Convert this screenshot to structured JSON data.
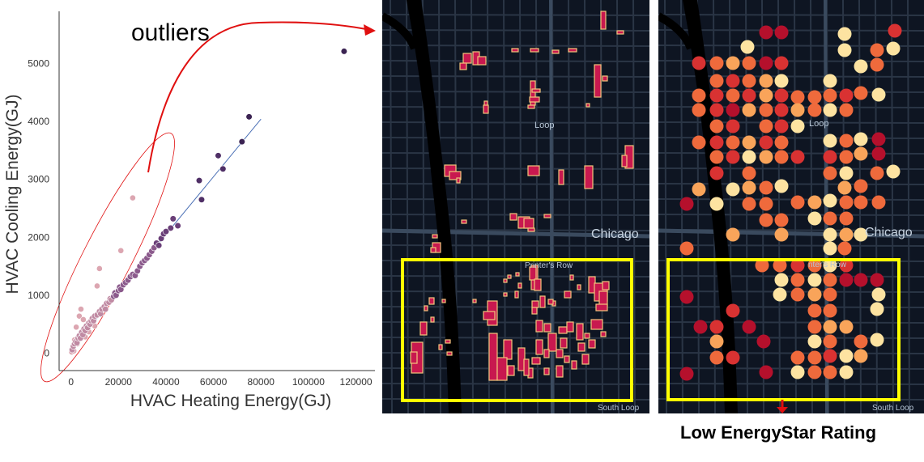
{
  "scatter": {
    "xlabel": "HVAC Heating Energy(GJ)",
    "ylabel": "HVAC Cooling Energy(GJ)",
    "annotation": "outliers"
  },
  "chart_data": {
    "type": "scatter",
    "xlabel": "HVAC Heating Energy(GJ)",
    "ylabel": "HVAC Cooling Energy(GJ)",
    "x_ticks": [
      0,
      20000,
      40000,
      60000,
      80000,
      100000,
      120000
    ],
    "y_ticks": [
      0,
      1000,
      2000,
      3000,
      4000,
      5000
    ],
    "xlim": [
      -5000,
      128000
    ],
    "ylim": [
      -300,
      5900
    ],
    "grid": false,
    "trend_line": {
      "x": [
        0,
        80000
      ],
      "y": [
        60,
        4040
      ]
    },
    "outlier_points": [
      {
        "x": 300,
        "y": 20
      },
      {
        "x": 800,
        "y": 90
      },
      {
        "x": 1200,
        "y": 40
      },
      {
        "x": 1500,
        "y": 230
      },
      {
        "x": 2200,
        "y": 450
      },
      {
        "x": 2600,
        "y": 160
      },
      {
        "x": 3500,
        "y": 640
      },
      {
        "x": 4200,
        "y": 760
      },
      {
        "x": 5200,
        "y": 580
      },
      {
        "x": 6000,
        "y": 280
      },
      {
        "x": 7500,
        "y": 370
      },
      {
        "x": 10000,
        "y": 470
      },
      {
        "x": 12000,
        "y": 1460
      },
      {
        "x": 11000,
        "y": 1160
      },
      {
        "x": 21000,
        "y": 1770
      },
      {
        "x": 26000,
        "y": 2680
      }
    ],
    "main_points": [
      {
        "x": 500,
        "y": 60
      },
      {
        "x": 1000,
        "y": 120
      },
      {
        "x": 1500,
        "y": 160
      },
      {
        "x": 2000,
        "y": 200
      },
      {
        "x": 2500,
        "y": 180
      },
      {
        "x": 3000,
        "y": 260
      },
      {
        "x": 3500,
        "y": 300
      },
      {
        "x": 4000,
        "y": 260
      },
      {
        "x": 4500,
        "y": 360
      },
      {
        "x": 5000,
        "y": 320
      },
      {
        "x": 5500,
        "y": 420
      },
      {
        "x": 6000,
        "y": 390
      },
      {
        "x": 6500,
        "y": 470
      },
      {
        "x": 7000,
        "y": 440
      },
      {
        "x": 7500,
        "y": 520
      },
      {
        "x": 8000,
        "y": 500
      },
      {
        "x": 8500,
        "y": 560
      },
      {
        "x": 9000,
        "y": 600
      },
      {
        "x": 9500,
        "y": 560
      },
      {
        "x": 10000,
        "y": 640
      },
      {
        "x": 11000,
        "y": 660
      },
      {
        "x": 12000,
        "y": 720
      },
      {
        "x": 12500,
        "y": 680
      },
      {
        "x": 13000,
        "y": 760
      },
      {
        "x": 14000,
        "y": 800
      },
      {
        "x": 14500,
        "y": 760
      },
      {
        "x": 15000,
        "y": 860
      },
      {
        "x": 16000,
        "y": 880
      },
      {
        "x": 16500,
        "y": 940
      },
      {
        "x": 17000,
        "y": 920
      },
      {
        "x": 18000,
        "y": 980
      },
      {
        "x": 18500,
        "y": 1040
      },
      {
        "x": 19000,
        "y": 1000
      },
      {
        "x": 20000,
        "y": 1080
      },
      {
        "x": 20500,
        "y": 1140
      },
      {
        "x": 21000,
        "y": 1100
      },
      {
        "x": 22000,
        "y": 1180
      },
      {
        "x": 23000,
        "y": 1220
      },
      {
        "x": 24000,
        "y": 1260
      },
      {
        "x": 25000,
        "y": 1320
      },
      {
        "x": 26000,
        "y": 1360
      },
      {
        "x": 27000,
        "y": 1340
      },
      {
        "x": 28000,
        "y": 1420
      },
      {
        "x": 29000,
        "y": 1500
      },
      {
        "x": 30000,
        "y": 1560
      },
      {
        "x": 31000,
        "y": 1600
      },
      {
        "x": 32000,
        "y": 1640
      },
      {
        "x": 33000,
        "y": 1700
      },
      {
        "x": 34000,
        "y": 1760
      },
      {
        "x": 35000,
        "y": 1820
      },
      {
        "x": 36000,
        "y": 1900
      },
      {
        "x": 37000,
        "y": 1860
      },
      {
        "x": 38000,
        "y": 1980
      },
      {
        "x": 39000,
        "y": 2060
      },
      {
        "x": 40000,
        "y": 2100
      },
      {
        "x": 42000,
        "y": 2160
      },
      {
        "x": 43000,
        "y": 2320
      },
      {
        "x": 45000,
        "y": 2200
      },
      {
        "x": 55000,
        "y": 2650
      },
      {
        "x": 54000,
        "y": 2980
      },
      {
        "x": 62000,
        "y": 3410
      },
      {
        "x": 64000,
        "y": 3180
      },
      {
        "x": 72000,
        "y": 3650
      },
      {
        "x": 75000,
        "y": 4080
      },
      {
        "x": 115000,
        "y": 5210
      }
    ]
  },
  "map_left": {
    "labels": {
      "loop": "Loop",
      "chicago": "Chicago",
      "printers_row": "Printer's Row",
      "south_loop": "South Loop"
    }
  },
  "map_right": {
    "labels": {
      "loop": "Loop",
      "chicago": "Chicago",
      "printers_row": "nter's Row",
      "south_loop": "South Loop"
    }
  },
  "caption": "Low EnergyStar Rating",
  "colors": {
    "map_bg": "#0e1522",
    "street": "#2a3545",
    "river": "#000000",
    "building_fill": "#c8184f",
    "building_edge": "#f2c57c",
    "highlight_box": "#ffff00",
    "arrow": "#e01010",
    "rating_scale": [
      "#b5102c",
      "#d93232",
      "#ef6a3c",
      "#f9a45a",
      "#fde3a1"
    ]
  }
}
